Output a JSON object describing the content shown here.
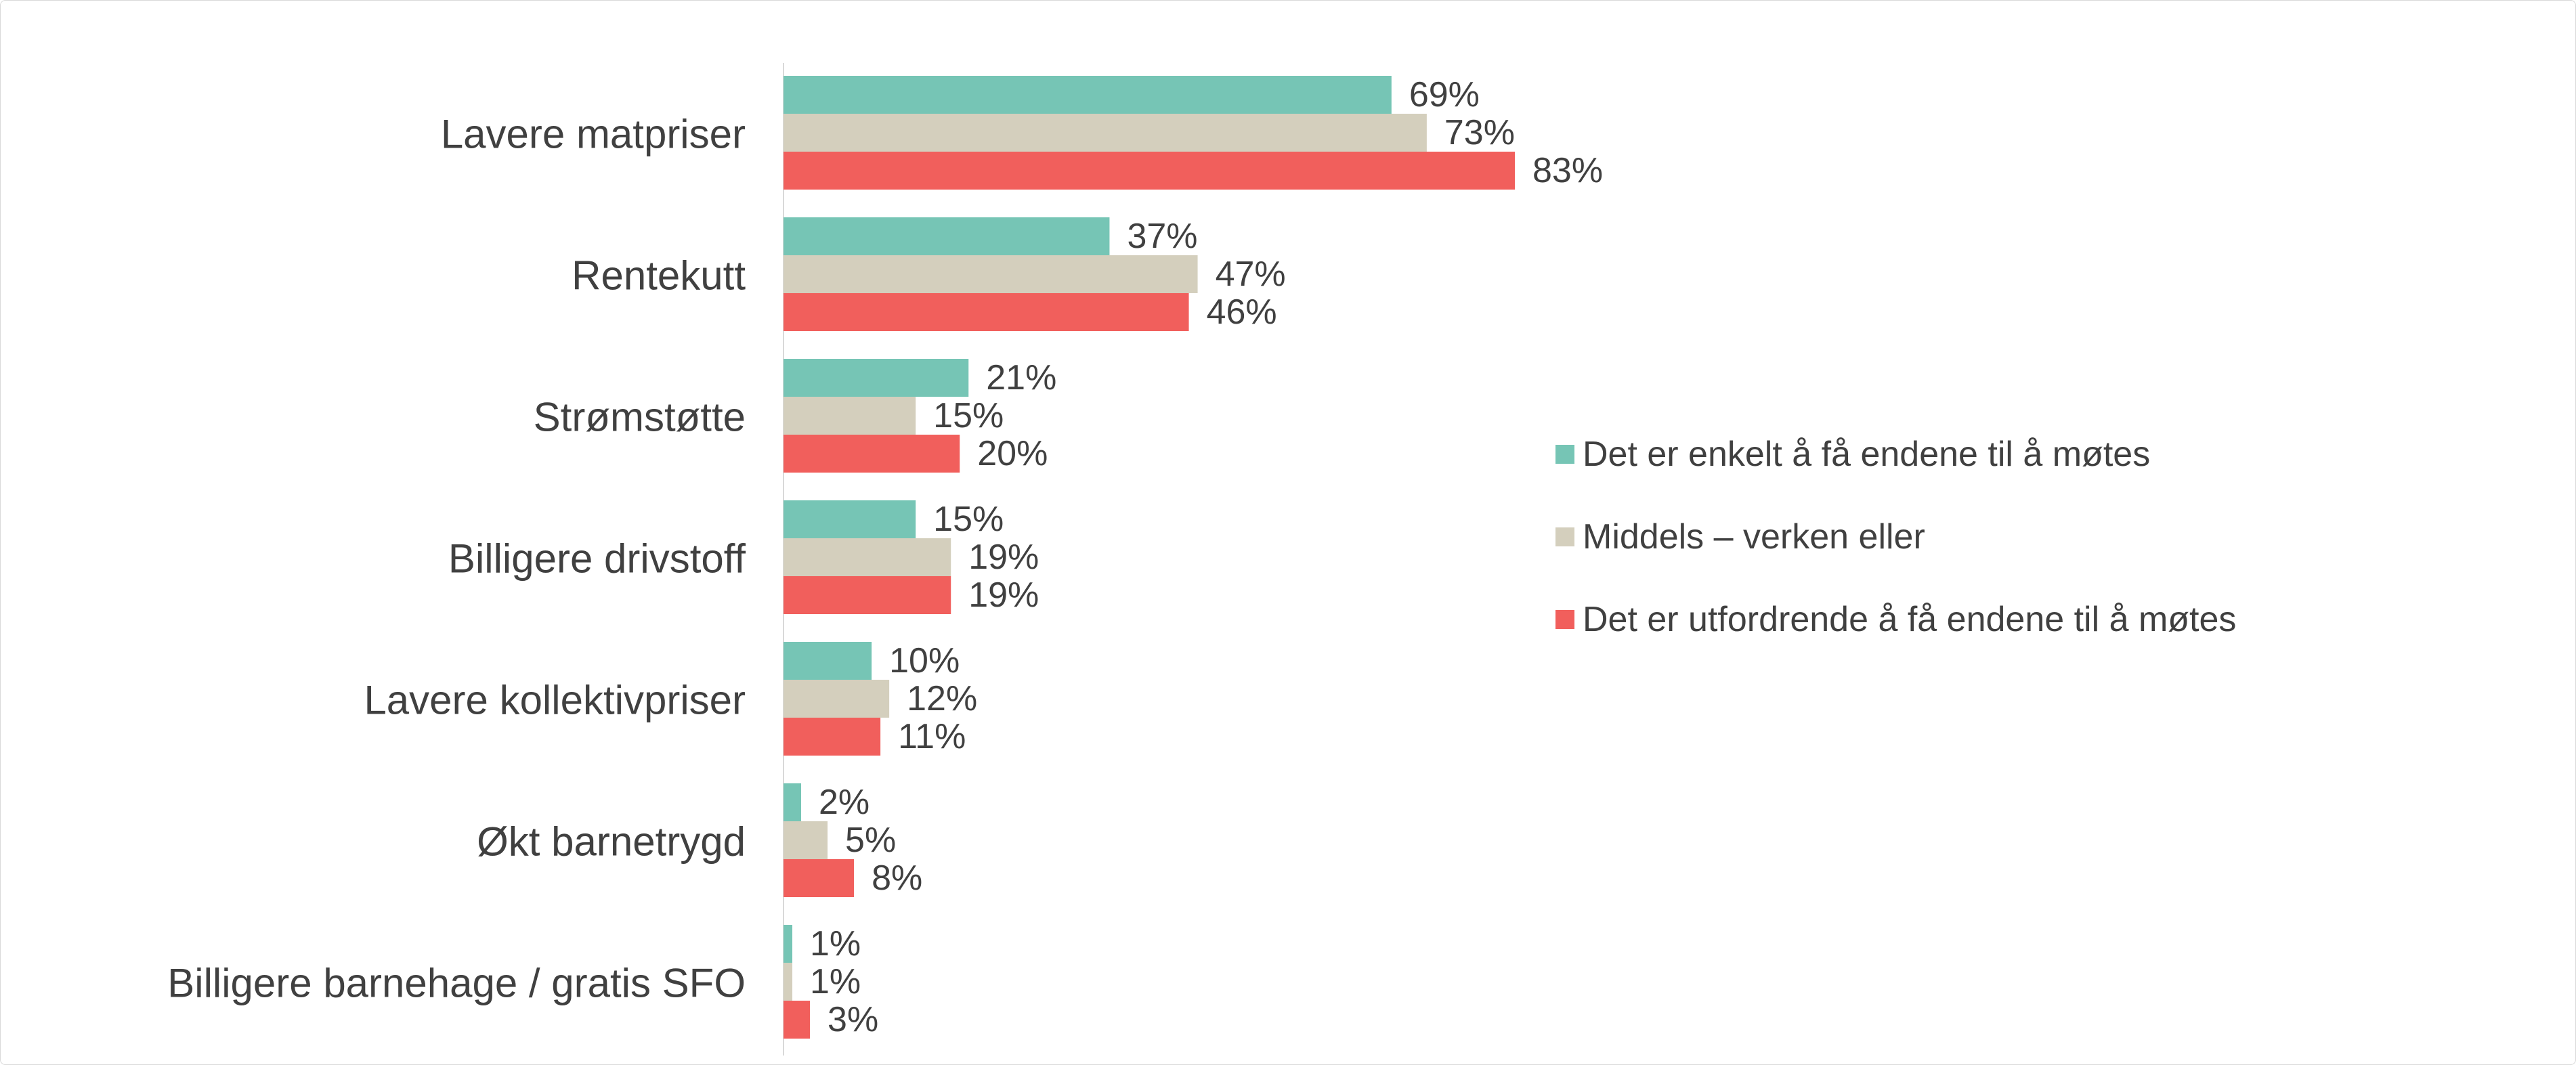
{
  "chart_data": {
    "type": "bar",
    "orientation": "horizontal",
    "title": "",
    "xlabel": "",
    "ylabel": "",
    "xlim": [
      0,
      100
    ],
    "grid": false,
    "legend_position": "right",
    "categories": [
      "Lavere matpriser",
      "Rentekutt",
      "Strømstøtte",
      "Billigere drivstoff",
      "Lavere kollektivpriser",
      "Økt barnetrygd",
      "Billigere barnehage / gratis SFO"
    ],
    "series": [
      {
        "name": "Det er enkelt å få endene til å møtes",
        "color": "#76c5b5",
        "values": [
          69,
          37,
          21,
          15,
          10,
          2,
          1
        ],
        "labels": [
          "69%",
          "37%",
          "21%",
          "15%",
          "10%",
          "2%",
          "1%"
        ]
      },
      {
        "name": "Middels – verken eller",
        "color": "#d4cfbd",
        "values": [
          73,
          47,
          15,
          19,
          12,
          5,
          1
        ],
        "labels": [
          "73%",
          "47%",
          "15%",
          "19%",
          "12%",
          "5%",
          "1%"
        ]
      },
      {
        "name": "Det er utfordrende å få endene til å møtes",
        "color": "#f15f5c",
        "values": [
          83,
          46,
          20,
          19,
          11,
          8,
          3
        ],
        "labels": [
          "83%",
          "46%",
          "20%",
          "19%",
          "11%",
          "8%",
          "3%"
        ]
      }
    ]
  }
}
